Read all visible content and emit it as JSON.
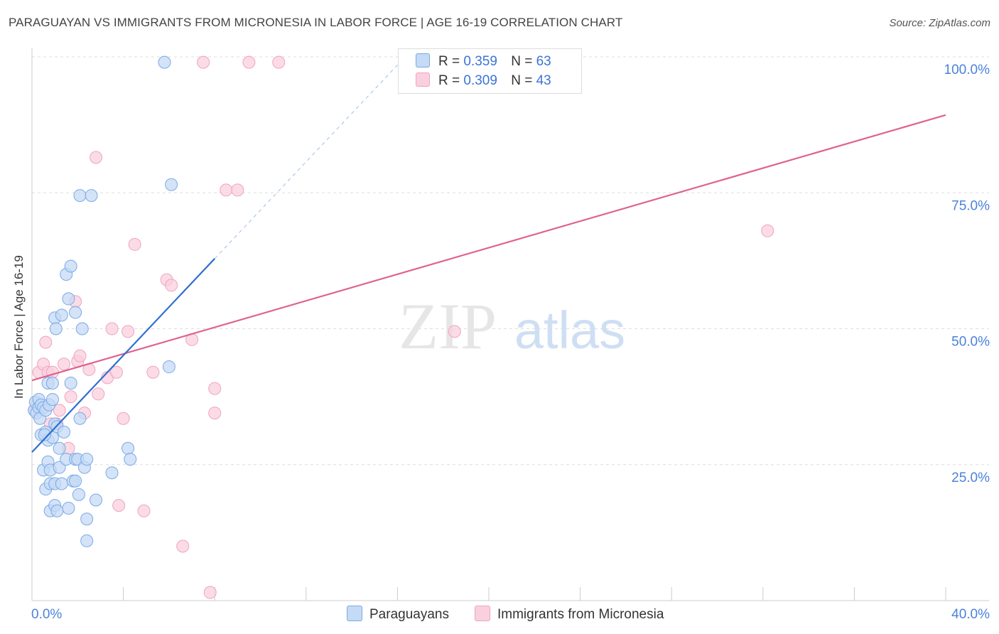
{
  "title": "PARAGUAYAN VS IMMIGRANTS FROM MICRONESIA IN LABOR FORCE | AGE 16-19 CORRELATION CHART",
  "source": "Source: ZipAtlas.com",
  "watermark": {
    "zip": "ZIP",
    "atlas": "atlas"
  },
  "legend": {
    "r_label": "R =",
    "n_label": "N =",
    "rows": [
      {
        "r": "0.359",
        "n": "63"
      },
      {
        "r": "0.309",
        "n": "43"
      }
    ]
  },
  "chart_data": {
    "type": "scatter",
    "title": "PARAGUAYAN VS IMMIGRANTS FROM MICRONESIA IN LABOR FORCE | AGE 16-19 CORRELATION CHART",
    "xlabel": "",
    "ylabel": "In Labor Force | Age 16-19",
    "xlim": [
      0,
      40
    ],
    "ylim": [
      0,
      100
    ],
    "x_tick_labels": [
      "0.0%",
      "40.0%"
    ],
    "y_tick_labels": [
      "25.0%",
      "50.0%",
      "75.0%",
      "100.0%"
    ],
    "y_ticks": [
      25,
      50,
      75,
      100
    ],
    "x_ticks": [
      0,
      4,
      8,
      12,
      16,
      20,
      24,
      28,
      32,
      36,
      40
    ],
    "colors": {
      "paraguayans": "#7aaae6",
      "micronesia": "#f0a3bd",
      "paraguayans_line": "#2f6fd0",
      "micronesia_line": "#e0628e",
      "axis_text": "#4b82d9"
    },
    "series": [
      {
        "name": "Paraguayans",
        "r": 0.359,
        "n": 63,
        "trend": {
          "x0": 0,
          "y0": 27.3,
          "x1": 8.0,
          "y1": 62.9,
          "dash_to_x": 16.0,
          "dash_to_y": 98.5
        },
        "points": [
          [
            0.1,
            35.0
          ],
          [
            0.15,
            36.5
          ],
          [
            0.2,
            34.5
          ],
          [
            0.3,
            35.5
          ],
          [
            0.3,
            37.0
          ],
          [
            0.35,
            33.5
          ],
          [
            0.4,
            36.0
          ],
          [
            0.4,
            30.5
          ],
          [
            0.5,
            35.5
          ],
          [
            0.5,
            24.0
          ],
          [
            0.6,
            31.0
          ],
          [
            0.6,
            35.0
          ],
          [
            0.6,
            20.5
          ],
          [
            0.7,
            29.5
          ],
          [
            0.7,
            25.5
          ],
          [
            0.7,
            40.0
          ],
          [
            0.75,
            36.0
          ],
          [
            0.8,
            16.5
          ],
          [
            0.8,
            24.0
          ],
          [
            0.8,
            21.5
          ],
          [
            0.9,
            40.0
          ],
          [
            0.9,
            30.0
          ],
          [
            0.9,
            37.0
          ],
          [
            1.0,
            52.0
          ],
          [
            1.0,
            32.5
          ],
          [
            1.0,
            21.5
          ],
          [
            1.0,
            17.5
          ],
          [
            1.05,
            50.0
          ],
          [
            1.1,
            16.5
          ],
          [
            1.1,
            32.0
          ],
          [
            1.2,
            28.0
          ],
          [
            1.2,
            24.5
          ],
          [
            1.3,
            52.5
          ],
          [
            1.3,
            21.5
          ],
          [
            1.4,
            31.0
          ],
          [
            1.5,
            60.0
          ],
          [
            1.5,
            26.0
          ],
          [
            1.6,
            17.0
          ],
          [
            1.6,
            55.5
          ],
          [
            1.7,
            61.5
          ],
          [
            1.7,
            40.0
          ],
          [
            1.8,
            22.0
          ],
          [
            1.9,
            53.0
          ],
          [
            1.9,
            22.0
          ],
          [
            1.9,
            26.0
          ],
          [
            2.0,
            26.0
          ],
          [
            2.05,
            19.5
          ],
          [
            2.1,
            33.5
          ],
          [
            2.1,
            74.5
          ],
          [
            2.2,
            50.0
          ],
          [
            2.3,
            24.5
          ],
          [
            2.4,
            26.0
          ],
          [
            2.4,
            15.0
          ],
          [
            2.4,
            11.0
          ],
          [
            2.6,
            74.5
          ],
          [
            2.8,
            18.5
          ],
          [
            3.5,
            23.5
          ],
          [
            4.2,
            28.0
          ],
          [
            4.3,
            26.0
          ],
          [
            5.8,
            99.0
          ],
          [
            6.0,
            43.0
          ],
          [
            6.1,
            76.5
          ],
          [
            0.55,
            30.5
          ]
        ]
      },
      {
        "name": "Immigrants from Micronesia",
        "r": 0.309,
        "n": 43,
        "trend": {
          "x0": 0,
          "y0": 40.5,
          "x1": 40.0,
          "y1": 89.3
        },
        "points": [
          [
            0.1,
            35.0
          ],
          [
            0.2,
            36.0
          ],
          [
            0.3,
            42.0
          ],
          [
            0.5,
            43.5
          ],
          [
            0.6,
            47.5
          ],
          [
            0.7,
            42.0
          ],
          [
            0.8,
            32.5
          ],
          [
            0.9,
            42.0
          ],
          [
            1.1,
            32.5
          ],
          [
            1.2,
            35.0
          ],
          [
            1.4,
            43.5
          ],
          [
            1.6,
            28.0
          ],
          [
            1.7,
            37.5
          ],
          [
            1.9,
            55.0
          ],
          [
            2.0,
            44.0
          ],
          [
            2.1,
            45.0
          ],
          [
            2.3,
            34.5
          ],
          [
            2.5,
            42.5
          ],
          [
            2.8,
            81.5
          ],
          [
            2.9,
            38.0
          ],
          [
            3.3,
            41.0
          ],
          [
            3.5,
            50.0
          ],
          [
            3.7,
            42.0
          ],
          [
            3.8,
            17.5
          ],
          [
            4.0,
            33.5
          ],
          [
            4.2,
            49.5
          ],
          [
            4.5,
            65.5
          ],
          [
            4.9,
            16.5
          ],
          [
            5.3,
            42.0
          ],
          [
            5.9,
            59.0
          ],
          [
            6.1,
            58.0
          ],
          [
            6.6,
            10.0
          ],
          [
            7.0,
            48.0
          ],
          [
            7.5,
            99.0
          ],
          [
            7.8,
            1.5
          ],
          [
            8.0,
            39.0
          ],
          [
            8.0,
            34.5
          ],
          [
            8.5,
            75.5
          ],
          [
            9.0,
            75.5
          ],
          [
            9.5,
            99.0
          ],
          [
            10.8,
            99.0
          ],
          [
            18.5,
            49.5
          ],
          [
            32.2,
            68.0
          ]
        ]
      }
    ]
  },
  "bottom_legend": [
    "Paraguayans",
    "Immigrants from Micronesia"
  ]
}
